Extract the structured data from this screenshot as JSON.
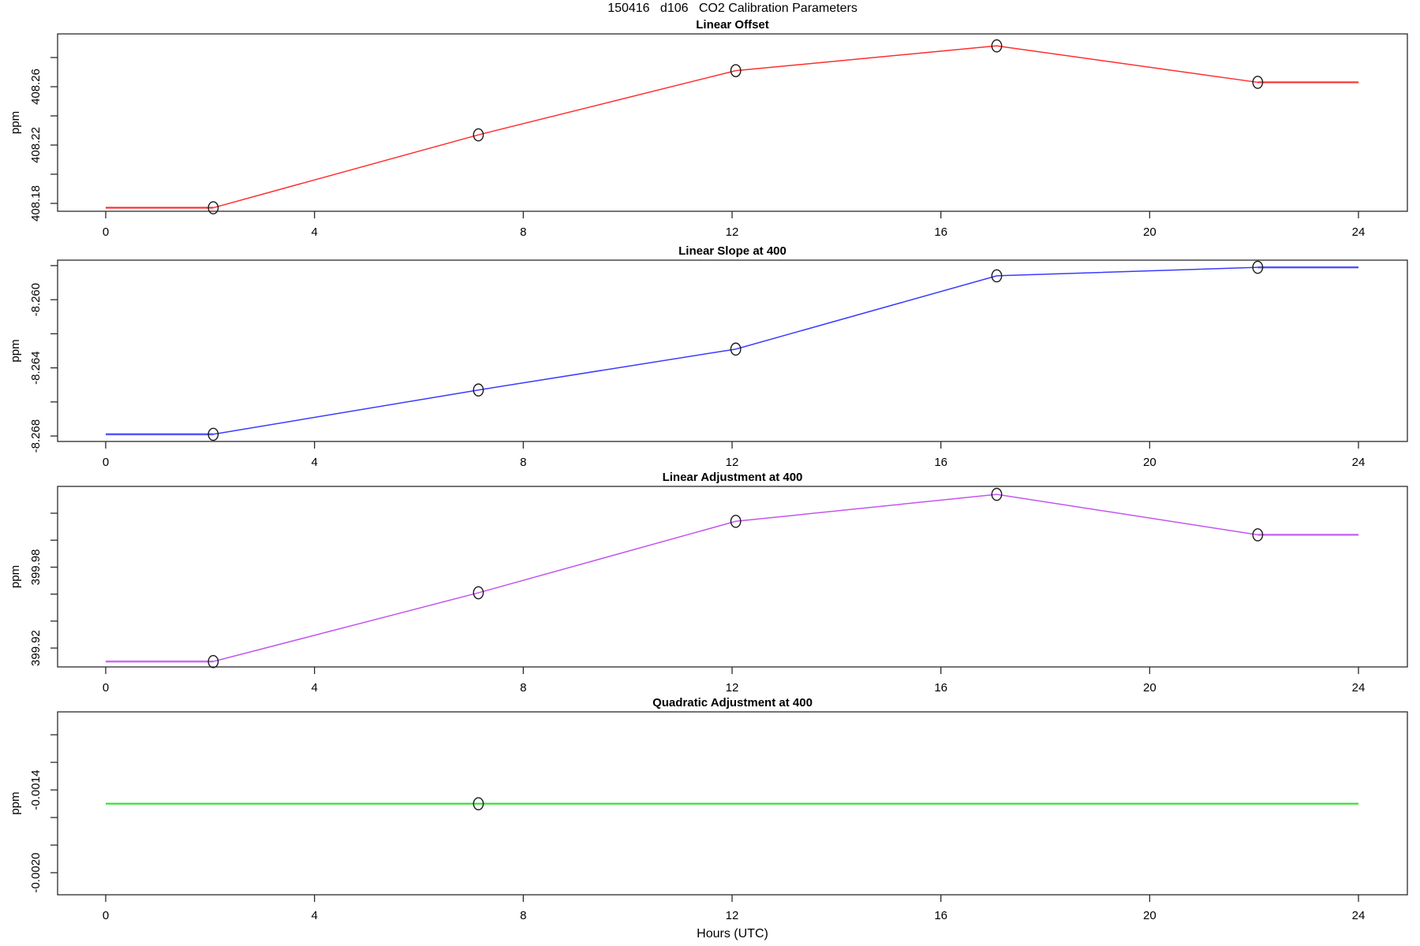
{
  "header": {
    "title": "150416   d106   CO2 Calibration Parameters"
  },
  "axes": {
    "xlabel": "Hours (UTC)",
    "ylabel": "ppm",
    "x_ticks": [
      0,
      4,
      8,
      12,
      16,
      20,
      24
    ]
  },
  "chart_data": [
    {
      "type": "line",
      "title": "Linear Offset",
      "color": "#ff2d2d",
      "ylabel": "ppm",
      "x": [
        0,
        2.06,
        7.14,
        12.07,
        17.07,
        22.07,
        24
      ],
      "y": [
        408.177,
        408.177,
        408.227,
        408.271,
        408.288,
        408.263,
        408.263
      ],
      "markers": [
        1,
        2,
        3,
        4,
        5
      ],
      "y_ticks": [
        408.18,
        408.2,
        408.22,
        408.24,
        408.26,
        408.28
      ],
      "y_tick_labels": [
        "408.18",
        "",
        "408.22",
        "",
        "408.26",
        ""
      ],
      "ylim": [
        408.1746,
        408.2962
      ],
      "xlim": [
        -0.96,
        24.96
      ],
      "grid": false,
      "legend": null
    },
    {
      "type": "line",
      "title": "Linear Slope at 400",
      "color": "#3a3aff",
      "ylabel": "ppm",
      "x": [
        0,
        2.06,
        7.14,
        12.07,
        17.07,
        22.07,
        24
      ],
      "y": [
        -8.2679,
        -8.2679,
        -8.2653,
        -8.2629,
        -8.2586,
        -8.2581,
        -8.2581
      ],
      "markers": [
        1,
        2,
        3,
        4,
        5
      ],
      "y_ticks": [
        -8.268,
        -8.266,
        -8.264,
        -8.262,
        -8.26,
        -8.258
      ],
      "y_tick_labels": [
        "-8.268",
        "",
        "-8.264",
        "",
        "-8.260",
        ""
      ],
      "ylim": [
        -8.26832,
        -8.25768
      ],
      "xlim": [
        -0.96,
        24.96
      ],
      "grid": false,
      "legend": null
    },
    {
      "type": "line",
      "title": "Linear Adjustment at 400",
      "color": "#c255f0",
      "ylabel": "ppm",
      "x": [
        0,
        2.06,
        7.14,
        12.07,
        17.07,
        22.07,
        24
      ],
      "y": [
        399.91,
        399.91,
        399.961,
        400.014,
        400.034,
        400.004,
        400.004
      ],
      "markers": [
        1,
        2,
        3,
        4,
        5
      ],
      "y_ticks": [
        399.92,
        399.94,
        399.96,
        399.98,
        400.0,
        400.02
      ],
      "y_tick_labels": [
        "399.92",
        "",
        "",
        "399.98",
        "",
        ""
      ],
      "ylim": [
        399.906,
        400.0399
      ],
      "xlim": [
        -0.96,
        24.96
      ],
      "grid": false,
      "legend": null
    },
    {
      "type": "line",
      "title": "Quadratic Adjustment at 400",
      "color": "#2de32d",
      "ylabel": "ppm",
      "x": [
        0,
        7.14,
        24
      ],
      "y": [
        -0.0015,
        -0.0015,
        -0.0015
      ],
      "markers": [
        1
      ],
      "y_ticks": [
        -0.002,
        -0.0018,
        -0.0016,
        -0.0014,
        -0.0012,
        -0.001
      ],
      "y_tick_labels": [
        "-0.0020",
        "",
        "",
        "-0.0014",
        "",
        ""
      ],
      "ylim": [
        -0.00216,
        -0.000834
      ],
      "xlim": [
        -0.96,
        24.96
      ],
      "grid": false,
      "legend": null
    }
  ]
}
